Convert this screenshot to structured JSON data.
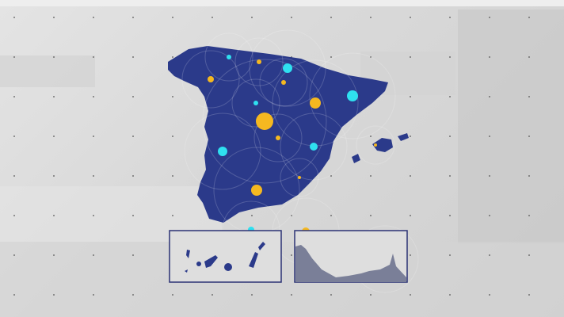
{
  "colors": {
    "background": "#dcdcdc",
    "land": "#2b3a8a",
    "inset_land": "#7a7f98",
    "inset_border": "#2b3275",
    "marker_yellow": "#f5b820",
    "marker_cyan": "#2fe0f0"
  },
  "map": {
    "region": "Spain",
    "insets": [
      "canary-islands",
      "ceuta-melilla"
    ]
  }
}
